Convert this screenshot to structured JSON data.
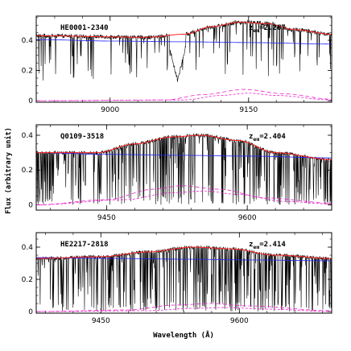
{
  "figure": {
    "ylabel": "Flux (arbitrary unit)",
    "xlabel": "Wavelength (Å)"
  },
  "chart_data": [
    {
      "type": "line",
      "name": "HE0001-2340",
      "redshift_label": "z",
      "redshift_sub": "em",
      "redshift_value": "=2.267",
      "xlim": [
        8920,
        9240
      ],
      "ylim": [
        -0.01,
        0.56
      ],
      "xticks": [
        9000,
        9150
      ],
      "xtick_labels": [
        "9000",
        "9150"
      ],
      "yticks": [
        0,
        0.2,
        0.4
      ],
      "ytick_labels": [
        "0",
        "0.2",
        "0.4"
      ],
      "continuum": [
        [
          8920,
          0.405
        ],
        [
          9000,
          0.395
        ],
        [
          9080,
          0.39
        ],
        [
          9150,
          0.385
        ],
        [
          9240,
          0.375
        ]
      ],
      "fit": [
        [
          8920,
          0.43
        ],
        [
          9040,
          0.42
        ],
        [
          9080,
          0.44
        ],
        [
          9110,
          0.49
        ],
        [
          9140,
          0.52
        ],
        [
          9170,
          0.51
        ],
        [
          9200,
          0.47
        ],
        [
          9240,
          0.44
        ]
      ],
      "components": [
        [
          [
            8920,
            0.0
          ],
          [
            9060,
            0.005
          ],
          [
            9100,
            0.04
          ],
          [
            9145,
            0.075
          ],
          [
            9190,
            0.045
          ],
          [
            9240,
            0.01
          ]
        ],
        [
          [
            8920,
            0.0
          ],
          [
            9080,
            0.005
          ],
          [
            9120,
            0.035
          ],
          [
            9150,
            0.05
          ],
          [
            9180,
            0.035
          ],
          [
            9240,
            0.005
          ]
        ]
      ]
    },
    {
      "type": "line",
      "name": "Q0109-3518",
      "redshift_label": "z",
      "redshift_sub": "em",
      "redshift_value": "=2.404",
      "xlim": [
        9375,
        9690
      ],
      "ylim": [
        -0.03,
        0.46
      ],
      "xticks": [
        9450,
        9600
      ],
      "xtick_labels": [
        "9450",
        "9600"
      ],
      "yticks": [
        0,
        0.2,
        0.4
      ],
      "ytick_labels": [
        "0",
        "0.2",
        "0.4"
      ],
      "continuum": [
        [
          9375,
          0.3
        ],
        [
          9450,
          0.29
        ],
        [
          9525,
          0.285
        ],
        [
          9600,
          0.28
        ],
        [
          9690,
          0.27
        ]
      ],
      "fit": [
        [
          9375,
          0.3
        ],
        [
          9440,
          0.3
        ],
        [
          9480,
          0.35
        ],
        [
          9520,
          0.39
        ],
        [
          9550,
          0.4
        ],
        [
          9590,
          0.37
        ],
        [
          9630,
          0.3
        ],
        [
          9690,
          0.26
        ]
      ],
      "components": [
        [
          [
            9375,
            0.0
          ],
          [
            9450,
            0.03
          ],
          [
            9500,
            0.09
          ],
          [
            9530,
            0.11
          ],
          [
            9570,
            0.09
          ],
          [
            9620,
            0.04
          ],
          [
            9690,
            0.01
          ]
        ],
        [
          [
            9375,
            0.0
          ],
          [
            9470,
            0.03
          ],
          [
            9520,
            0.07
          ],
          [
            9555,
            0.08
          ],
          [
            9590,
            0.06
          ],
          [
            9640,
            0.02
          ],
          [
            9690,
            0.005
          ]
        ]
      ]
    },
    {
      "type": "line",
      "name": "HE2217-2818",
      "redshift_label": "z",
      "redshift_sub": "em",
      "redshift_value": "=2.414",
      "xlim": [
        9380,
        9700
      ],
      "ylim": [
        -0.01,
        0.49
      ],
      "xticks": [
        9450,
        9600
      ],
      "xtick_labels": [
        "9450",
        "9600"
      ],
      "yticks": [
        0,
        0.2,
        0.4
      ],
      "ytick_labels": [
        "0",
        "0.2",
        "0.4"
      ],
      "continuum": [
        [
          9380,
          0.335
        ],
        [
          9460,
          0.33
        ],
        [
          9540,
          0.325
        ],
        [
          9620,
          0.32
        ],
        [
          9700,
          0.315
        ]
      ],
      "fit": [
        [
          9380,
          0.33
        ],
        [
          9450,
          0.34
        ],
        [
          9500,
          0.37
        ],
        [
          9550,
          0.4
        ],
        [
          9590,
          0.39
        ],
        [
          9640,
          0.35
        ],
        [
          9700,
          0.33
        ]
      ],
      "components": [
        [
          [
            9380,
            0.0
          ],
          [
            9480,
            0.01
          ],
          [
            9530,
            0.04
          ],
          [
            9570,
            0.05
          ],
          [
            9610,
            0.035
          ],
          [
            9700,
            0.005
          ]
        ],
        [
          [
            9380,
            0.0
          ],
          [
            9500,
            0.005
          ],
          [
            9550,
            0.02
          ],
          [
            9585,
            0.025
          ],
          [
            9630,
            0.015
          ],
          [
            9700,
            0.0
          ]
        ]
      ]
    }
  ]
}
